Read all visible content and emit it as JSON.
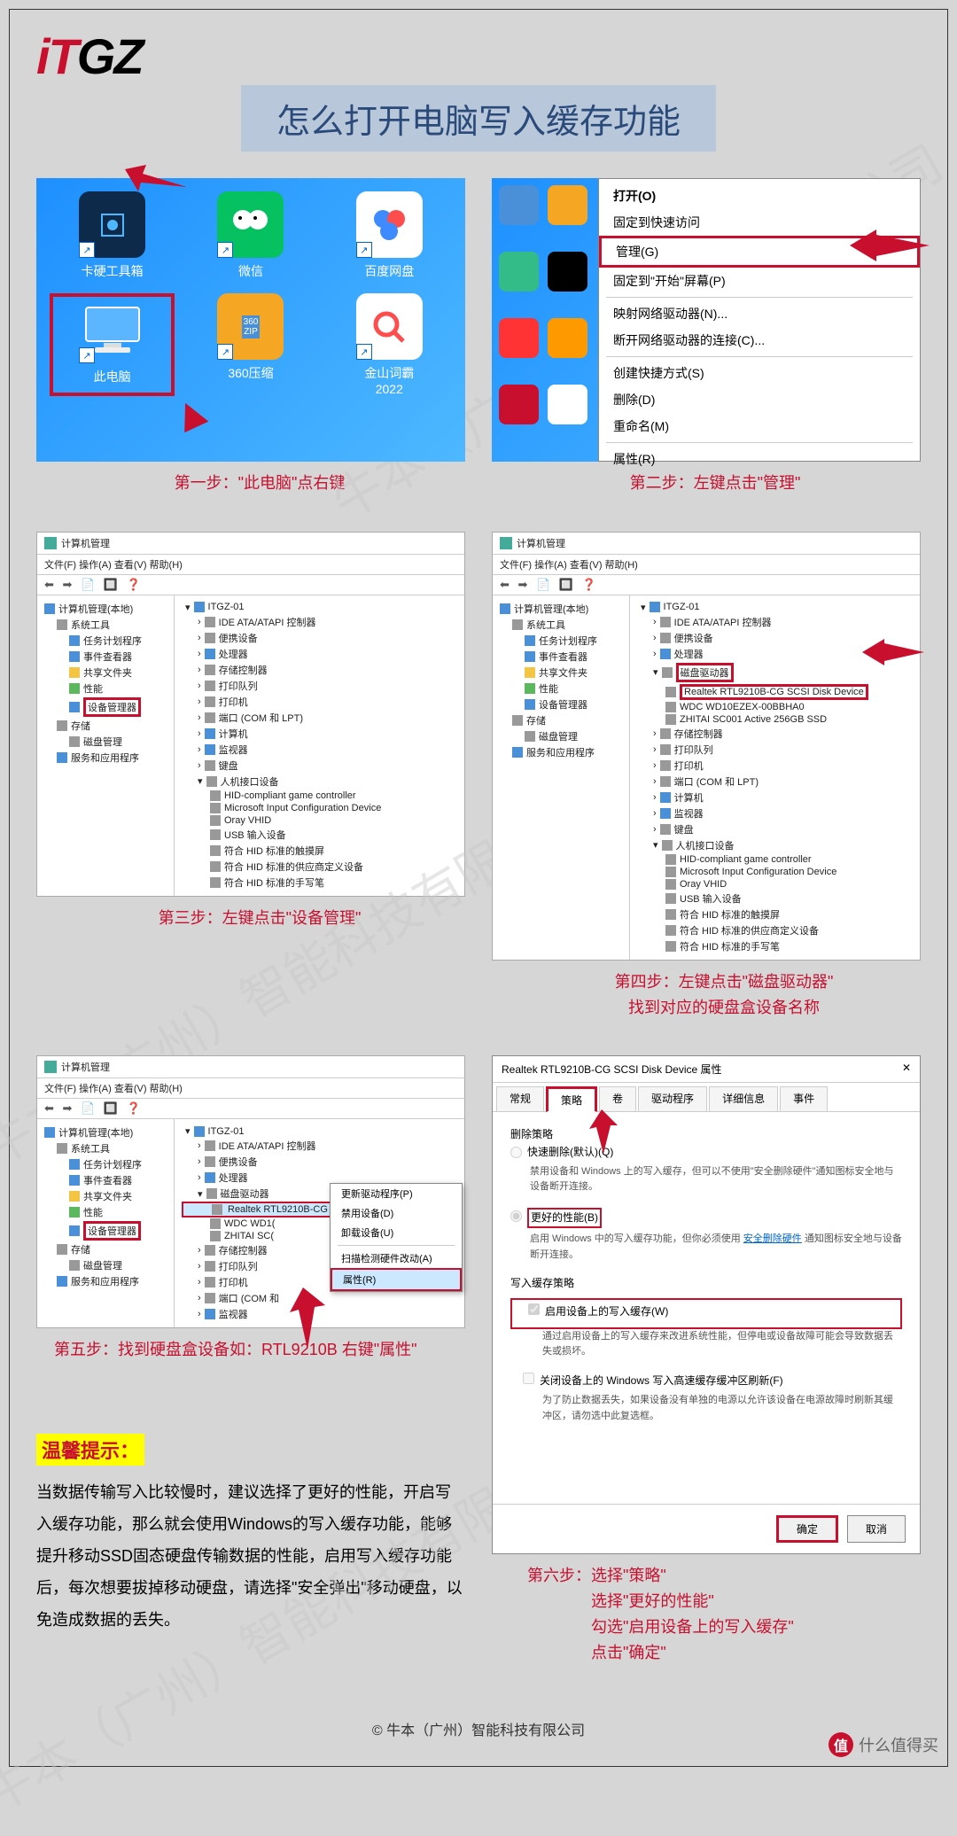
{
  "logo": {
    "i": "iT",
    "tgz": "GZ"
  },
  "title": "怎么打开电脑写入缓存功能",
  "step1": {
    "caption": "第一步：\"此电脑\"点右键",
    "icons": [
      {
        "label": "卡硬工具箱",
        "bg": "#0d2a4a"
      },
      {
        "label": "微信",
        "bg": "#06c160"
      },
      {
        "label": "百度网盘",
        "bg": "#ffffff"
      },
      {
        "label": "此电脑",
        "bg": "transparent",
        "highlight": true
      },
      {
        "label": "360压缩",
        "bg": "#f5a623"
      },
      {
        "label": "金山词霸\n2022",
        "bg": "#ffffff"
      }
    ]
  },
  "step2": {
    "caption": "第二步：左键点击\"管理\"",
    "menu_title": "打开(O)",
    "menu": [
      "固定到快速访问",
      "管理(G)",
      "固定到\"开始\"屏幕(P)",
      "—",
      "映射网络驱动器(N)...",
      "断开网络驱动器的连接(C)...",
      "—",
      "创建快捷方式(S)",
      "删除(D)",
      "重命名(M)",
      "—",
      "属性(R)"
    ],
    "hl_index": 1
  },
  "mgmt_common": {
    "title": "计算机管理",
    "menu": "文件(F)  操作(A)  查看(V)  帮助(H)",
    "left_root": "计算机管理(本地)",
    "left": [
      {
        "t": "系统工具",
        "ic": "ic-gray"
      },
      {
        "t": "任务计划程序",
        "ic": "ic-blue",
        "l": 3
      },
      {
        "t": "事件查看器",
        "ic": "ic-blue",
        "l": 3
      },
      {
        "t": "共享文件夹",
        "ic": "ic-folder",
        "l": 3
      },
      {
        "t": "性能",
        "ic": "ic-green",
        "l": 3
      },
      {
        "t": "设备管理器",
        "ic": "ic-blue",
        "l": 3,
        "hl": true
      },
      {
        "t": "存储",
        "ic": "ic-gray"
      },
      {
        "t": "磁盘管理",
        "ic": "ic-gray",
        "l": 3
      },
      {
        "t": "服务和应用程序",
        "ic": "ic-blue"
      }
    ],
    "right_root": "ITGZ-01",
    "right_common": [
      {
        "t": "IDE ATA/ATAPI 控制器",
        "ic": "ic-gray"
      },
      {
        "t": "便携设备",
        "ic": "ic-gray"
      },
      {
        "t": "处理器",
        "ic": "ic-blue"
      },
      {
        "t": "存储控制器",
        "ic": "ic-gray"
      },
      {
        "t": "打印队列",
        "ic": "ic-gray"
      },
      {
        "t": "打印机",
        "ic": "ic-gray"
      },
      {
        "t": "端口 (COM 和 LPT)",
        "ic": "ic-gray"
      },
      {
        "t": "计算机",
        "ic": "ic-blue"
      },
      {
        "t": "监视器",
        "ic": "ic-blue"
      },
      {
        "t": "键盘",
        "ic": "ic-gray"
      }
    ],
    "hid": [
      {
        "t": "人机接口设备",
        "ic": "ic-gray"
      },
      {
        "t": "HID-compliant game controller",
        "l": 3
      },
      {
        "t": "Microsoft Input Configuration Device",
        "l": 3
      },
      {
        "t": "Oray VHID",
        "l": 3
      },
      {
        "t": "USB 输入设备",
        "l": 3
      },
      {
        "t": "符合 HID 标准的触摸屏",
        "l": 3
      },
      {
        "t": "符合 HID 标准的供应商定义设备",
        "l": 3
      },
      {
        "t": "符合 HID 标准的手写笔",
        "l": 3
      }
    ]
  },
  "step3": {
    "caption": "第三步：左键点击\"设备管理\""
  },
  "step4": {
    "caption": "第四步：左键点击\"磁盘驱动器\"\n找到对应的硬盘盒设备名称",
    "disk_header": "磁盘驱动器",
    "disks": [
      {
        "t": "Realtek RTL9210B-CG SCSI Disk Device",
        "hl": true
      },
      {
        "t": "WDC WD10EZEX-00BBHA0"
      },
      {
        "t": "ZHITAI SC001 Active 256GB SSD"
      }
    ]
  },
  "step5": {
    "caption": "第五步：找到硬盘盒设备如：RTL9210B 右键\"属性\"",
    "disk_hl": "Realtek RTL9210B-CG SCSI Disk Device",
    "disks_other": [
      "WDC WD1(",
      "ZHITAI SC("
    ],
    "ctx": [
      "更新驱动程序(P)",
      "禁用设备(D)",
      "卸载设备(U)",
      "—",
      "扫描检测硬件改动(A)",
      "属性(R)"
    ],
    "ctx_sel": 5,
    "right_short": [
      {
        "t": "IDE ATA/ATAPI 控制器",
        "ic": "ic-gray"
      },
      {
        "t": "便携设备",
        "ic": "ic-gray"
      },
      {
        "t": "处理器",
        "ic": "ic-blue"
      },
      {
        "t": "磁盘驱动器",
        "ic": "ic-gray"
      }
    ],
    "right_tail": [
      {
        "t": "存储控制器",
        "ic": "ic-gray"
      },
      {
        "t": "打印队列",
        "ic": "ic-gray"
      },
      {
        "t": "打印机",
        "ic": "ic-gray"
      },
      {
        "t": "端口 (COM 和",
        "ic": "ic-gray"
      },
      {
        "t": "监视器",
        "ic": "ic-blue"
      }
    ]
  },
  "step6": {
    "caption": "第六步：选择\"策略\"\n　　　　选择\"更好的性能\"\n　　　　勾选\"启用设备上的写入缓存\"\n　　　　点击\"确定\"",
    "title": "Realtek RTL9210B-CG SCSI Disk Device 属性",
    "tabs": [
      "常规",
      "策略",
      "卷",
      "驱动程序",
      "详细信息",
      "事件"
    ],
    "active_tab": 1,
    "policy_header": "删除策略",
    "opt1": {
      "label": "快速删除(默认)(Q)",
      "desc": "禁用设备和 Windows 上的写入缓存，但可以不使用\"安全删除硬件\"通知图标安全地与设备断开连接。"
    },
    "opt2": {
      "label": "更好的性能(B)",
      "desc_pre": "启用 Windows 中的写入缓存功能，但你必须使用",
      "link": "安全删除硬件",
      "desc_post": "通知图标安全地与设备断开连接。"
    },
    "cache_header": "写入缓存策略",
    "chk1": {
      "label": "启用设备上的写入缓存(W)",
      "desc": "通过启用设备上的写入缓存来改进系统性能，但停电或设备故障可能会导致数据丢失或损坏。"
    },
    "chk2": {
      "label": "关闭设备上的 Windows 写入高速缓存缓冲区刷新(F)",
      "desc": "为了防止数据丢失，如果设备没有单独的电源以允许该设备在电源故障时刷新其缓冲区，请勿选中此复选框。"
    },
    "btn_ok": "确定",
    "btn_cancel": "取消"
  },
  "tips": {
    "label": "温馨提示：",
    "text": "当数据传输写入比较慢时，建议选择了更好的性能，开启写入缓存功能，那么就会使用Windows的写入缓存功能，能够提升移动SSD固态硬盘传输数据的性能，启用写入缓存功能后，每次想要拔掉移动硬盘，请选择\"安全弹出\"移动硬盘，以免造成数据的丢失。"
  },
  "footer": "© 牛本（广州）智能科技有限公司",
  "watermark": {
    "circle": "值",
    "text": "什么值得买"
  },
  "wm_diag": "牛本（广州）智能科技有限公司"
}
